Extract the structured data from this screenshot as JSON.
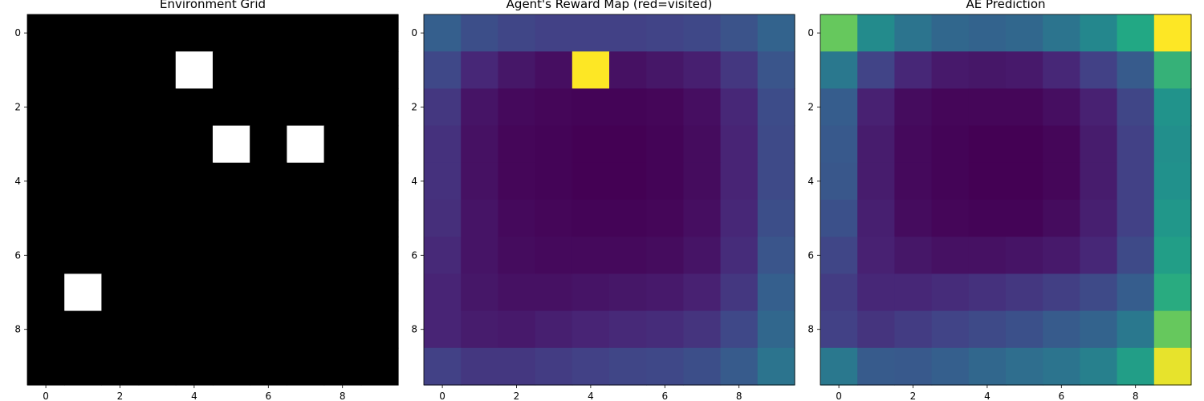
{
  "chart_data": [
    {
      "type": "heatmap",
      "title": "Environment Grid",
      "colormap": "gray",
      "xticks": [
        0,
        2,
        4,
        6,
        8
      ],
      "yticks": [
        0,
        2,
        4,
        6,
        8
      ],
      "xlim": [
        -0.5,
        9.5
      ],
      "ylim": [
        9.5,
        -0.5
      ],
      "grid": false,
      "values": [
        [
          0,
          0,
          0,
          0,
          0,
          0,
          0,
          0,
          0,
          0
        ],
        [
          0,
          0,
          0,
          0,
          1,
          0,
          0,
          0,
          0,
          0
        ],
        [
          0,
          0,
          0,
          0,
          0,
          0,
          0,
          0,
          0,
          0
        ],
        [
          0,
          0,
          0,
          0,
          0,
          1,
          0,
          1,
          0,
          0
        ],
        [
          0,
          0,
          0,
          0,
          0,
          0,
          0,
          0,
          0,
          0
        ],
        [
          0,
          0,
          0,
          0,
          0,
          0,
          0,
          0,
          0,
          0
        ],
        [
          0,
          0,
          0,
          0,
          0,
          0,
          0,
          0,
          0,
          0
        ],
        [
          0,
          1,
          0,
          0,
          0,
          0,
          0,
          0,
          0,
          0
        ],
        [
          0,
          0,
          0,
          0,
          0,
          0,
          0,
          0,
          0,
          0
        ],
        [
          0,
          0,
          0,
          0,
          0,
          0,
          0,
          0,
          0,
          0
        ]
      ]
    },
    {
      "type": "heatmap",
      "title": "Agent's Reward Map (red=visited)",
      "colormap": "viridis",
      "xticks": [
        0,
        2,
        4,
        6,
        8
      ],
      "yticks": [
        0,
        2,
        4,
        6,
        8
      ],
      "xlim": [
        -0.5,
        9.5
      ],
      "ylim": [
        9.5,
        -0.5
      ],
      "grid": false,
      "values": [
        [
          0.38,
          0.3,
          0.26,
          0.24,
          0.24,
          0.24,
          0.25,
          0.27,
          0.32,
          0.4
        ],
        [
          0.27,
          0.14,
          0.08,
          0.05,
          1.0,
          0.06,
          0.08,
          0.11,
          0.2,
          0.33
        ],
        [
          0.2,
          0.07,
          0.03,
          0.02,
          0.01,
          0.01,
          0.02,
          0.05,
          0.14,
          0.29
        ],
        [
          0.18,
          0.06,
          0.02,
          0.01,
          0.0,
          0.0,
          0.01,
          0.04,
          0.13,
          0.28
        ],
        [
          0.18,
          0.06,
          0.02,
          0.01,
          0.0,
          0.0,
          0.01,
          0.04,
          0.13,
          0.28
        ],
        [
          0.17,
          0.07,
          0.03,
          0.02,
          0.01,
          0.01,
          0.02,
          0.05,
          0.14,
          0.3
        ],
        [
          0.15,
          0.07,
          0.04,
          0.03,
          0.03,
          0.03,
          0.04,
          0.07,
          0.16,
          0.33
        ],
        [
          0.13,
          0.08,
          0.06,
          0.06,
          0.07,
          0.08,
          0.09,
          0.12,
          0.2,
          0.38
        ],
        [
          0.13,
          0.1,
          0.09,
          0.11,
          0.13,
          0.15,
          0.16,
          0.19,
          0.27,
          0.42
        ],
        [
          0.24,
          0.2,
          0.2,
          0.22,
          0.24,
          0.26,
          0.27,
          0.3,
          0.36,
          0.48
        ]
      ]
    },
    {
      "type": "heatmap",
      "title": "AE Prediction",
      "colormap": "viridis",
      "xticks": [
        0,
        2,
        4,
        6,
        8
      ],
      "yticks": [
        0,
        2,
        4,
        6,
        8
      ],
      "xlim": [
        -0.5,
        9.5
      ],
      "ylim": [
        9.5,
        -0.5
      ],
      "grid": false,
      "values": [
        [
          0.85,
          0.6,
          0.48,
          0.42,
          0.4,
          0.42,
          0.48,
          0.58,
          0.75,
          1.0
        ],
        [
          0.5,
          0.25,
          0.14,
          0.09,
          0.08,
          0.09,
          0.14,
          0.24,
          0.36,
          0.78
        ],
        [
          0.37,
          0.12,
          0.04,
          0.02,
          0.02,
          0.02,
          0.05,
          0.12,
          0.26,
          0.64
        ],
        [
          0.35,
          0.1,
          0.03,
          0.01,
          0.0,
          0.0,
          0.02,
          0.1,
          0.24,
          0.62
        ],
        [
          0.34,
          0.1,
          0.03,
          0.01,
          0.0,
          0.0,
          0.02,
          0.1,
          0.24,
          0.63
        ],
        [
          0.31,
          0.11,
          0.04,
          0.02,
          0.01,
          0.01,
          0.04,
          0.11,
          0.24,
          0.66
        ],
        [
          0.26,
          0.12,
          0.08,
          0.06,
          0.06,
          0.07,
          0.09,
          0.14,
          0.28,
          0.7
        ],
        [
          0.22,
          0.14,
          0.14,
          0.16,
          0.18,
          0.2,
          0.23,
          0.28,
          0.37,
          0.76
        ],
        [
          0.24,
          0.19,
          0.22,
          0.25,
          0.28,
          0.31,
          0.36,
          0.4,
          0.5,
          0.85
        ],
        [
          0.5,
          0.36,
          0.35,
          0.38,
          0.42,
          0.45,
          0.48,
          0.54,
          0.7,
          0.98
        ]
      ]
    }
  ]
}
